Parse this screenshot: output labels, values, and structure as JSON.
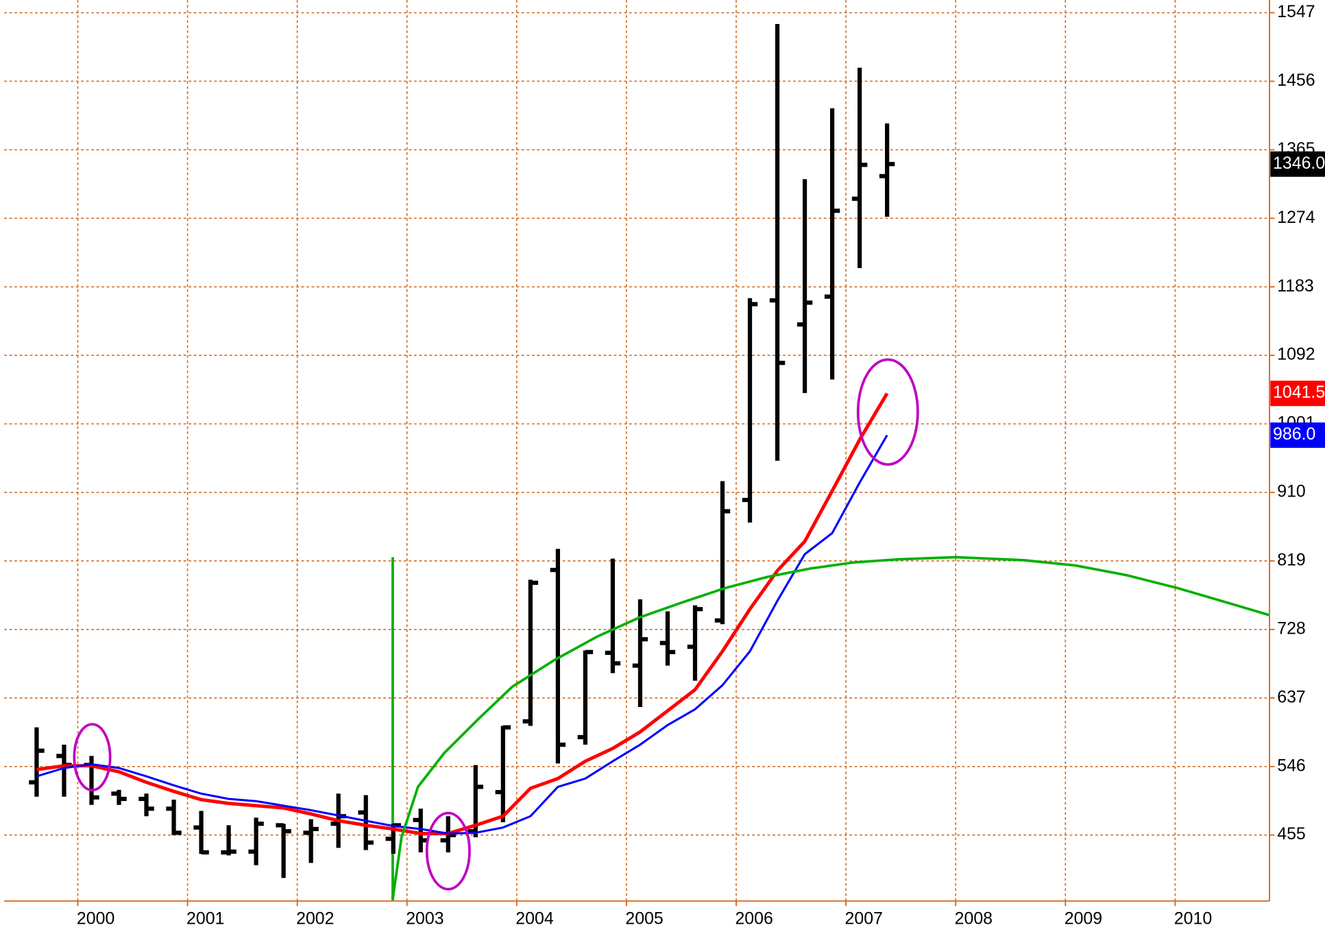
{
  "chart_data": {
    "type": "ohlc",
    "xlim": [
      1999.33,
      2010.86
    ],
    "ylim": [
      367.4,
      1563.9
    ],
    "xticks": [
      2000,
      2001,
      2002,
      2003,
      2004,
      2005,
      2006,
      2007,
      2008,
      2009,
      2010
    ],
    "yticks": [
      455,
      546,
      637,
      728,
      819,
      910,
      1001,
      1092,
      1183,
      1274,
      1365,
      1456,
      1547
    ],
    "grid": true,
    "grid_color": "#d2691e",
    "bars": {
      "color": "#000000",
      "x": [
        1999.625,
        1999.875,
        2000.125,
        2000.375,
        2000.625,
        2000.875,
        2001.125,
        2001.375,
        2001.625,
        2001.875,
        2002.125,
        2002.375,
        2002.625,
        2002.875,
        2003.125,
        2003.375,
        2003.625,
        2003.875,
        2004.125,
        2004.375,
        2004.625,
        2004.875,
        2005.125,
        2005.375,
        2005.625,
        2005.875,
        2006.125,
        2006.375,
        2006.625,
        2006.875,
        2007.125,
        2007.375
      ],
      "open": [
        525,
        560,
        548,
        510,
        503,
        490,
        465,
        432,
        433,
        468,
        458,
        470,
        485,
        450,
        475,
        448,
        460,
        512,
        606,
        807,
        585,
        697,
        680,
        710,
        705,
        740,
        900,
        1165,
        1133,
        1170,
        1300,
        1330
      ],
      "high": [
        598,
        575,
        560,
        515,
        510,
        502,
        487,
        468,
        478,
        470,
        476,
        510,
        508,
        470,
        490,
        480,
        548,
        600,
        794,
        835,
        700,
        822,
        768,
        752,
        760,
        925,
        1168,
        1532,
        1326,
        1420,
        1474,
        1400
      ],
      "low": [
        506,
        506,
        495,
        495,
        480,
        455,
        430,
        428,
        415,
        398,
        418,
        438,
        435,
        430,
        432,
        432,
        452,
        472,
        600,
        550,
        575,
        670,
        625,
        680,
        660,
        735,
        870,
        952,
        1042,
        1060,
        1208,
        1276
      ],
      "close": [
        567,
        548,
        505,
        503,
        490,
        458,
        432,
        433,
        470,
        460,
        463,
        480,
        445,
        468,
        448,
        455,
        519,
        598,
        790,
        575,
        698,
        683,
        715,
        698,
        755,
        885,
        1160,
        1082,
        1162,
        1284,
        1345,
        1346
      ],
      "value_labels": [
        null,
        null,
        null,
        null,
        null,
        null,
        null,
        null,
        null,
        null,
        null,
        null,
        null,
        null,
        null,
        null,
        null,
        null,
        null,
        null,
        null,
        null,
        null,
        null,
        null,
        null,
        null,
        null,
        null,
        null,
        null,
        "1346.0"
      ]
    },
    "series": [
      {
        "color": "#ff0000",
        "width": 4,
        "x": [
          1999.625,
          1999.875,
          2000.125,
          2000.375,
          2000.625,
          2000.875,
          2001.125,
          2001.375,
          2001.625,
          2001.875,
          2002.125,
          2002.375,
          2002.625,
          2002.875,
          2003.125,
          2003.375,
          2003.625,
          2003.875,
          2004.125,
          2004.375,
          2004.625,
          2004.875,
          2005.125,
          2005.375,
          2005.625,
          2005.875,
          2006.125,
          2006.375,
          2006.625,
          2006.875,
          2007.125,
          2007.375
        ],
        "values": [
          542,
          547,
          547,
          539,
          525,
          513,
          502,
          497,
          494,
          491,
          483,
          474,
          468,
          463,
          457,
          457,
          468,
          480,
          517,
          530,
          553,
          570,
          592,
          620,
          648,
          699,
          755,
          806,
          845,
          912,
          980,
          1041.5
        ],
        "value_labels": [
          null,
          null,
          null,
          null,
          null,
          null,
          null,
          null,
          null,
          null,
          null,
          null,
          null,
          null,
          null,
          null,
          null,
          null,
          null,
          null,
          null,
          null,
          null,
          null,
          null,
          null,
          null,
          null,
          null,
          null,
          null,
          "1041.5"
        ]
      },
      {
        "color": "#0000ff",
        "width": 2.5,
        "x": [
          1999.625,
          1999.875,
          2000.125,
          2000.375,
          2000.625,
          2000.875,
          2001.125,
          2001.375,
          2001.625,
          2001.875,
          2002.125,
          2002.375,
          2002.625,
          2002.875,
          2003.125,
          2003.375,
          2003.625,
          2003.875,
          2004.125,
          2004.375,
          2004.625,
          2004.875,
          2005.125,
          2005.375,
          2005.625,
          2005.875,
          2006.125,
          2006.375,
          2006.625,
          2006.875,
          2007.125,
          2007.375
        ],
        "values": [
          533,
          544,
          549,
          544,
          533,
          521,
          510,
          503,
          500,
          494,
          488,
          481,
          474,
          467,
          463,
          457,
          458,
          465,
          480,
          519,
          530,
          553,
          575,
          601,
          622,
          654,
          699,
          766,
          828,
          856,
          923,
          986
        ],
        "value_labels": [
          null,
          null,
          null,
          null,
          null,
          null,
          null,
          null,
          null,
          null,
          null,
          null,
          null,
          null,
          null,
          null,
          null,
          null,
          null,
          null,
          null,
          null,
          null,
          null,
          null,
          null,
          null,
          null,
          null,
          null,
          null,
          "986.0"
        ]
      },
      {
        "color": "#00b000",
        "width": 3,
        "x": [
          2002.87,
          2002.95,
          2003.1,
          2003.34,
          2003.65,
          2003.96,
          2004.35,
          2004.74,
          2005.12,
          2005.51,
          2005.9,
          2006.29,
          2006.68,
          2007.07,
          2007.46,
          2008.0,
          2008.62,
          2009.09,
          2009.56,
          2010.02,
          2010.49,
          2010.86
        ],
        "values": [
          370,
          452,
          519,
          564,
          609,
          652,
          688,
          719,
          744,
          764,
          783,
          798,
          809,
          817,
          821,
          824,
          820,
          813,
          800,
          783,
          763,
          747
        ]
      }
    ],
    "vline": {
      "x": 2002.87,
      "top": 824,
      "color": "#00b000"
    }
  }
}
